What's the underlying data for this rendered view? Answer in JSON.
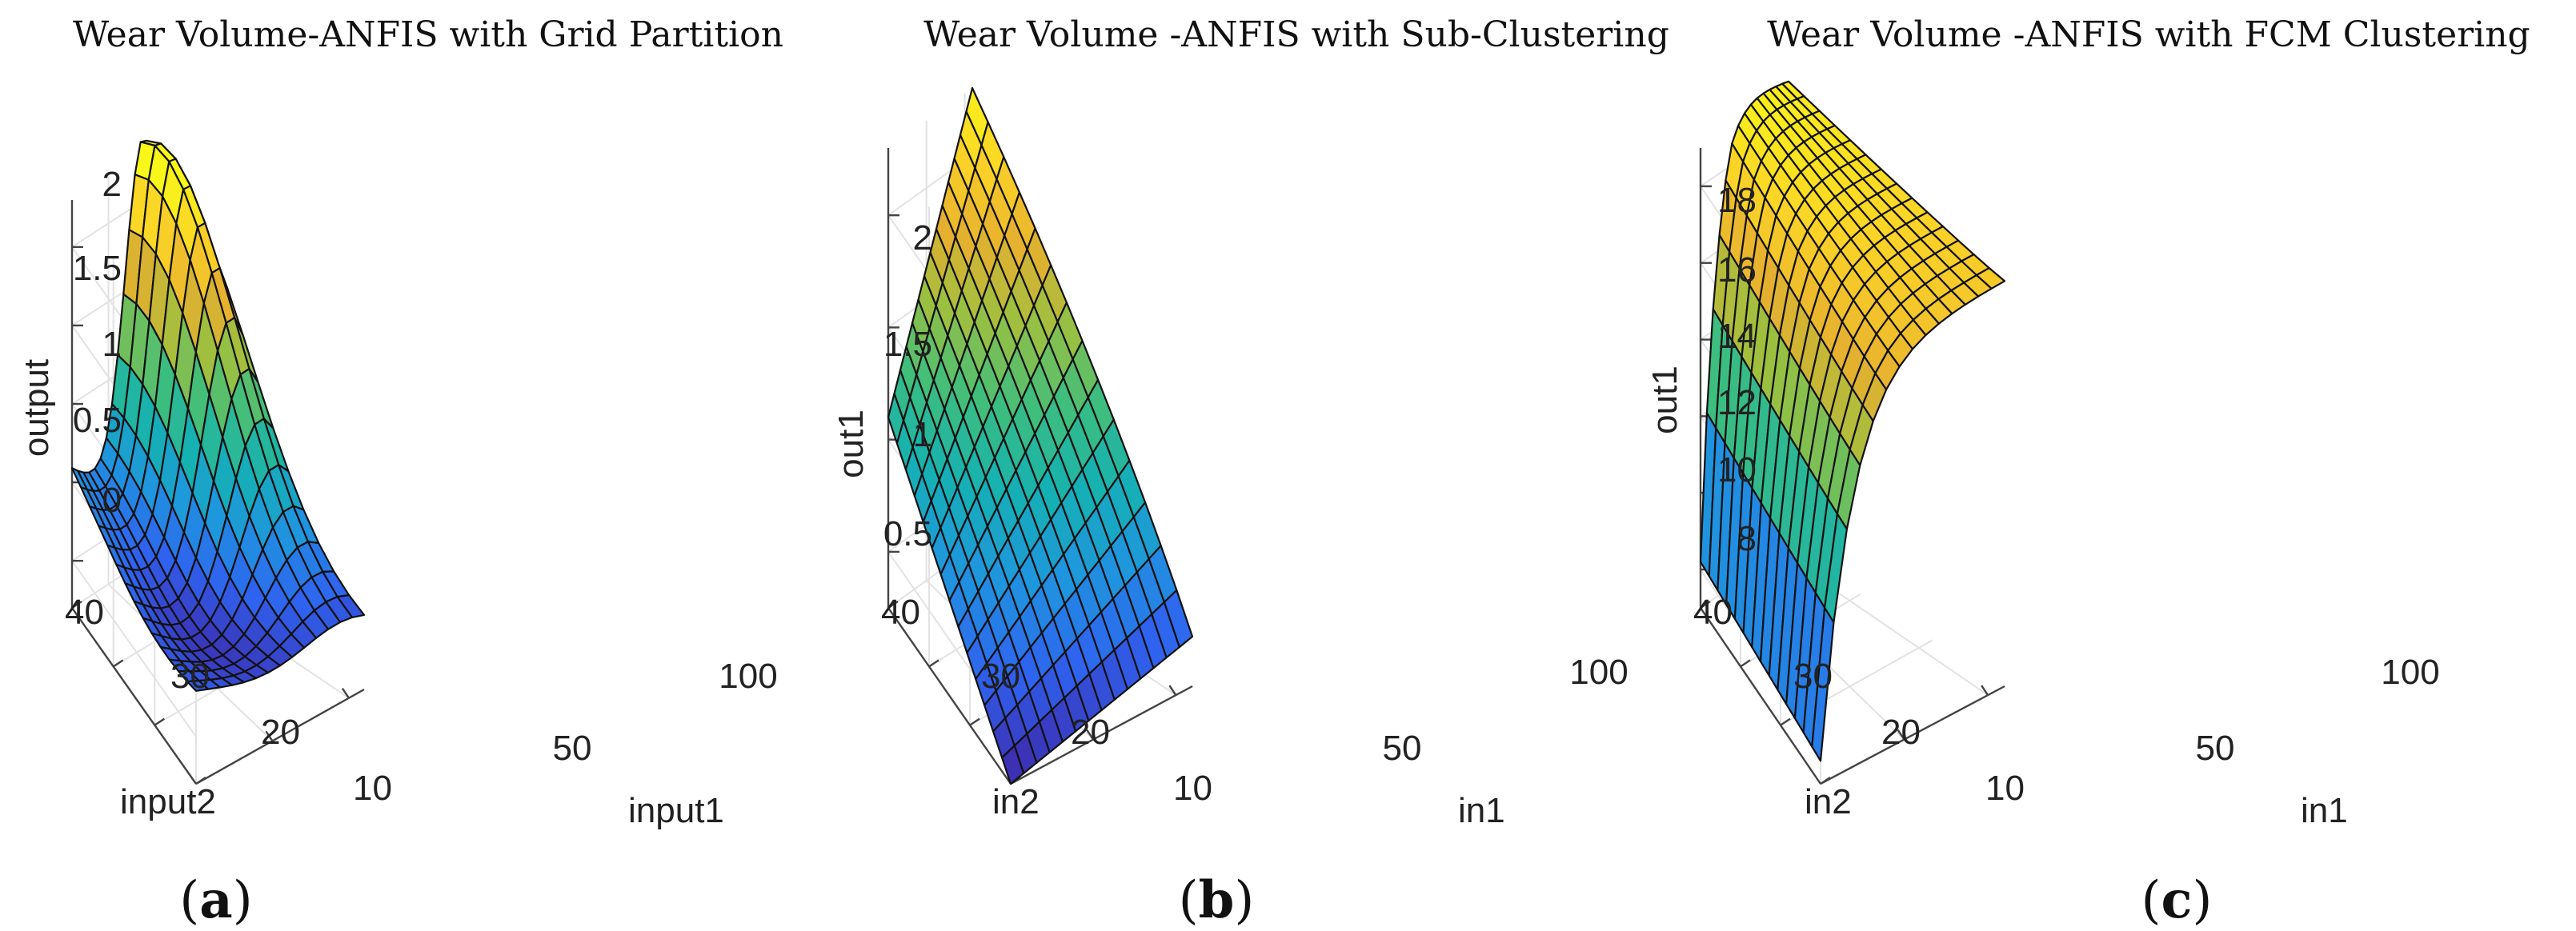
{
  "chart_data": [
    {
      "type": "surface",
      "panel_label": "a",
      "title": "Wear Volume-ANFIS with Grid Partition",
      "xlabel": "input1",
      "ylabel": "input2",
      "zlabel": "output",
      "xlim": [
        0,
        110
      ],
      "ylim": [
        10,
        40
      ],
      "zlim": [
        -0.3,
        2.3
      ],
      "xticks": [
        50,
        100
      ],
      "yticks": [
        10,
        20,
        30,
        40
      ],
      "zticks": [
        0,
        0.5,
        1,
        1.5,
        2
      ],
      "ztick_labels": [
        "0",
        "0.5",
        "1",
        "1.5",
        "2"
      ],
      "model": "grid",
      "color_range": [
        0.0,
        2.3
      ]
    },
    {
      "type": "surface",
      "panel_label": "b",
      "title": "Wear Volume -ANFIS with Sub-Clustering",
      "xlabel": "in1",
      "ylabel": "in2",
      "zlabel": "out1",
      "xlim": [
        0,
        110
      ],
      "ylim": [
        10,
        40
      ],
      "zlim": [
        0.25,
        2.3
      ],
      "xticks": [
        50,
        100
      ],
      "yticks": [
        10,
        20,
        30,
        40
      ],
      "zticks": [
        0.5,
        1,
        1.5,
        2
      ],
      "ztick_labels": [
        "0.5",
        "1",
        "1.5",
        "2"
      ],
      "model": "sub",
      "color_range": [
        0.25,
        2.3
      ]
    },
    {
      "type": "surface",
      "panel_label": "c",
      "title": "Wear Volume -ANFIS with FCM Clustering",
      "xlabel": "in1",
      "ylabel": "in2",
      "zlabel": "out1",
      "xlim": [
        0,
        110
      ],
      "ylim": [
        10,
        40
      ],
      "zlim": [
        7,
        19
      ],
      "xticks": [
        50,
        100
      ],
      "yticks": [
        10,
        20,
        30,
        40
      ],
      "zticks": [
        8,
        10,
        12,
        14,
        16,
        18
      ],
      "ztick_labels": [
        "8",
        "10",
        "12",
        "14",
        "16",
        "18"
      ],
      "model": "fcm",
      "color_range": [
        7,
        19.6
      ]
    }
  ],
  "colormap": [
    "#3e26a8",
    "#2f63ef",
    "#1f96de",
    "#15b1b2",
    "#3fbe7c",
    "#9bc040",
    "#e6b02f",
    "#fbd327",
    "#f9f719"
  ]
}
